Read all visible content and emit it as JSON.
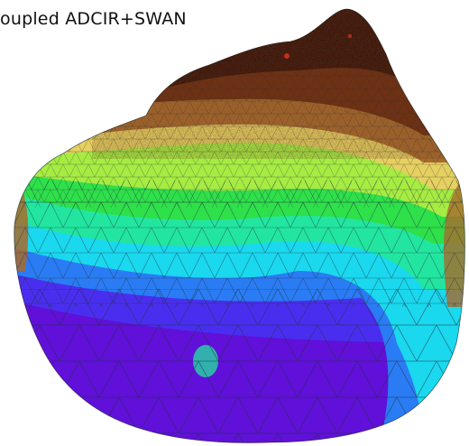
{
  "title": "oupled ADCIR+SWAN",
  "colors": {
    "land_dark": "#3a1408",
    "land_mid": "#6e2e10",
    "shore_brown": "#a86a2c",
    "shallow_yellow": "#e6d060",
    "lime": "#a6ec42",
    "green": "#2ee04a",
    "spring": "#22e6a0",
    "cyan": "#1ad8ee",
    "blue": "#2a7cf4",
    "indigo": "#4a2ef0",
    "violet": "#6010d8",
    "mesh_line": "#203040"
  },
  "icons": {
    "domain": "bay-mesh-icon"
  }
}
